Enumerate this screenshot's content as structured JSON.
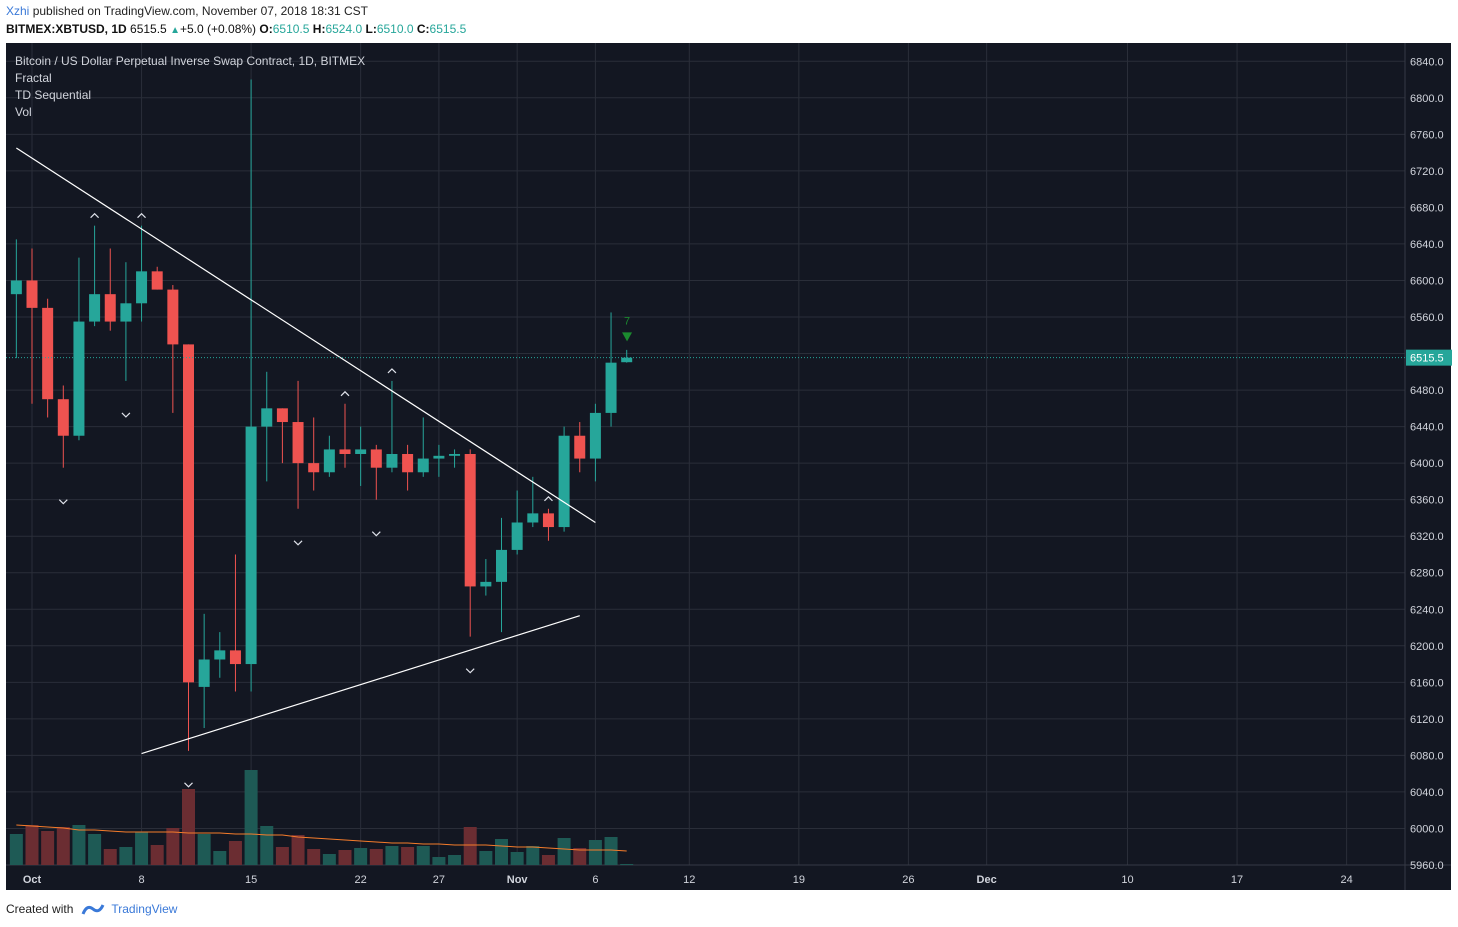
{
  "header": {
    "author": "Xzhi",
    "published_text": "published on TradingView.com, November 07, 2018 18:31 CST",
    "symbol": "BITMEX:XBTUSD, 1D",
    "last": "6515.5",
    "change": "+5.0 (+0.08%)",
    "o_label": "O:",
    "o_value": "6510.5",
    "h_label": "H:",
    "h_value": "6524.0",
    "l_label": "L:",
    "l_value": "6510.0",
    "c_label": "C:",
    "c_value": "6515.5"
  },
  "legend": {
    "title": "Bitcoin / US Dollar Perpetual Inverse Swap Contract, 1D, BITMEX",
    "indicators": [
      "Fractal",
      "TD Sequential",
      "Vol"
    ]
  },
  "footer": {
    "created_with": "Created with",
    "brand": "TradingView"
  },
  "colors": {
    "background": "#131722",
    "grid": "#2a2e39",
    "up": "#26a69a",
    "down": "#ef5350",
    "vol_up": "#1e5a55",
    "vol_down": "#6b2d32",
    "vol_ma": "#f57c2b",
    "price_line": "#26a69a",
    "trendline": "#ffffff"
  },
  "chart_data": {
    "type": "candlestick",
    "title": "Bitcoin / US Dollar Perpetual Inverse Swap Contract, 1D, BITMEX",
    "ylim": [
      5960,
      6860
    ],
    "y_ticks": [
      "5960.0",
      "6000.0",
      "6040.0",
      "6080.0",
      "6120.0",
      "6160.0",
      "6200.0",
      "6240.0",
      "6280.0",
      "6320.0",
      "6360.0",
      "6400.0",
      "6440.0",
      "6480.0",
      "6520.0",
      "6560.0",
      "6600.0",
      "6640.0",
      "6680.0",
      "6720.0",
      "6760.0",
      "6800.0",
      "6840.0"
    ],
    "x_ticks": [
      {
        "label": "Oct",
        "date": "2018-10-01"
      },
      {
        "label": "8",
        "date": "2018-10-08"
      },
      {
        "label": "15",
        "date": "2018-10-15"
      },
      {
        "label": "22",
        "date": "2018-10-22"
      },
      {
        "label": "27",
        "date": "2018-10-27"
      },
      {
        "label": "Nov",
        "date": "2018-11-01"
      },
      {
        "label": "6",
        "date": "2018-11-06"
      },
      {
        "label": "12",
        "date": "2018-11-12"
      },
      {
        "label": "19",
        "date": "2018-11-19"
      },
      {
        "label": "26",
        "date": "2018-11-26"
      },
      {
        "label": "Dec",
        "date": "2018-12-01"
      },
      {
        "label": "10",
        "date": "2018-12-10"
      },
      {
        "label": "17",
        "date": "2018-12-17"
      },
      {
        "label": "24",
        "date": "2018-12-24"
      }
    ],
    "last_price": "6515.5",
    "candles": [
      {
        "date": "2018-09-30",
        "o": 6585,
        "h": 6645,
        "l": 6515,
        "c": 6600,
        "v": 31
      },
      {
        "date": "2018-10-01",
        "o": 6600,
        "h": 6635,
        "l": 6465,
        "c": 6570,
        "v": 40
      },
      {
        "date": "2018-10-02",
        "o": 6570,
        "h": 6580,
        "l": 6450,
        "c": 6470,
        "v": 34
      },
      {
        "date": "2018-10-03",
        "o": 6470,
        "h": 6485,
        "l": 6395,
        "c": 6430,
        "v": 38
      },
      {
        "date": "2018-10-04",
        "o": 6430,
        "h": 6625,
        "l": 6425,
        "c": 6555,
        "v": 40
      },
      {
        "date": "2018-10-05",
        "o": 6555,
        "h": 6660,
        "l": 6550,
        "c": 6585,
        "v": 31
      },
      {
        "date": "2018-10-06",
        "o": 6585,
        "h": 6635,
        "l": 6545,
        "c": 6555,
        "v": 16
      },
      {
        "date": "2018-10-07",
        "o": 6555,
        "h": 6620,
        "l": 6490,
        "c": 6575,
        "v": 18
      },
      {
        "date": "2018-10-08",
        "o": 6575,
        "h": 6660,
        "l": 6555,
        "c": 6610,
        "v": 33
      },
      {
        "date": "2018-10-09",
        "o": 6610,
        "h": 6615,
        "l": 6590,
        "c": 6590,
        "v": 20
      },
      {
        "date": "2018-10-10",
        "o": 6590,
        "h": 6595,
        "l": 6455,
        "c": 6530,
        "v": 37
      },
      {
        "date": "2018-10-11",
        "o": 6530,
        "h": 6530,
        "l": 6085,
        "c": 6160,
        "v": 76
      },
      {
        "date": "2018-10-12",
        "o": 6155,
        "h": 6235,
        "l": 6110,
        "c": 6185,
        "v": 31
      },
      {
        "date": "2018-10-13",
        "o": 6185,
        "h": 6215,
        "l": 6165,
        "c": 6195,
        "v": 14
      },
      {
        "date": "2018-10-14",
        "o": 6195,
        "h": 6300,
        "l": 6150,
        "c": 6180,
        "v": 24
      },
      {
        "date": "2018-10-15",
        "o": 6180,
        "h": 6820,
        "l": 6150,
        "c": 6440,
        "v": 95
      },
      {
        "date": "2018-10-16",
        "o": 6440,
        "h": 6500,
        "l": 6380,
        "c": 6460,
        "v": 39
      },
      {
        "date": "2018-10-17",
        "o": 6460,
        "h": 6460,
        "l": 6400,
        "c": 6445,
        "v": 18
      },
      {
        "date": "2018-10-18",
        "o": 6445,
        "h": 6490,
        "l": 6350,
        "c": 6400,
        "v": 30
      },
      {
        "date": "2018-10-19",
        "o": 6400,
        "h": 6450,
        "l": 6370,
        "c": 6390,
        "v": 16
      },
      {
        "date": "2018-10-20",
        "o": 6390,
        "h": 6430,
        "l": 6385,
        "c": 6415,
        "v": 11
      },
      {
        "date": "2018-10-21",
        "o": 6415,
        "h": 6465,
        "l": 6395,
        "c": 6410,
        "v": 15
      },
      {
        "date": "2018-10-22",
        "o": 6410,
        "h": 6440,
        "l": 6375,
        "c": 6415,
        "v": 17
      },
      {
        "date": "2018-10-23",
        "o": 6415,
        "h": 6420,
        "l": 6360,
        "c": 6395,
        "v": 16
      },
      {
        "date": "2018-10-24",
        "o": 6395,
        "h": 6490,
        "l": 6390,
        "c": 6410,
        "v": 19
      },
      {
        "date": "2018-10-25",
        "o": 6410,
        "h": 6420,
        "l": 6370,
        "c": 6390,
        "v": 18
      },
      {
        "date": "2018-10-26",
        "o": 6390,
        "h": 6450,
        "l": 6385,
        "c": 6405,
        "v": 19
      },
      {
        "date": "2018-10-27",
        "o": 6405,
        "h": 6420,
        "l": 6385,
        "c": 6408,
        "v": 8
      },
      {
        "date": "2018-10-28",
        "o": 6408,
        "h": 6415,
        "l": 6395,
        "c": 6410,
        "v": 10
      },
      {
        "date": "2018-10-29",
        "o": 6410,
        "h": 6415,
        "l": 6210,
        "c": 6265,
        "v": 38
      },
      {
        "date": "2018-10-30",
        "o": 6265,
        "h": 6295,
        "l": 6255,
        "c": 6270,
        "v": 14
      },
      {
        "date": "2018-10-31",
        "o": 6270,
        "h": 6340,
        "l": 6215,
        "c": 6305,
        "v": 26
      },
      {
        "date": "2018-11-01",
        "o": 6305,
        "h": 6370,
        "l": 6300,
        "c": 6335,
        "v": 13
      },
      {
        "date": "2018-11-02",
        "o": 6335,
        "h": 6385,
        "l": 6330,
        "c": 6345,
        "v": 19
      },
      {
        "date": "2018-11-03",
        "o": 6345,
        "h": 6350,
        "l": 6315,
        "c": 6330,
        "v": 10
      },
      {
        "date": "2018-11-04",
        "o": 6330,
        "h": 6440,
        "l": 6325,
        "c": 6430,
        "v": 27
      },
      {
        "date": "2018-11-05",
        "o": 6430,
        "h": 6445,
        "l": 6390,
        "c": 6405,
        "v": 17
      },
      {
        "date": "2018-11-06",
        "o": 6405,
        "h": 6465,
        "l": 6380,
        "c": 6455,
        "v": 25
      },
      {
        "date": "2018-11-07",
        "o": 6455,
        "h": 6565,
        "l": 6440,
        "c": 6510,
        "v": 28
      },
      {
        "date": "2018-11-08",
        "o": 6510.5,
        "h": 6524,
        "l": 6510,
        "c": 6515.5,
        "v": 1
      }
    ],
    "volume_ma": [
      40,
      39,
      38,
      37,
      35,
      35,
      34,
      33,
      33,
      33,
      33,
      32,
      32,
      32,
      31,
      31,
      30,
      30,
      28,
      27,
      26,
      25,
      24,
      23,
      22,
      22,
      21,
      21,
      20,
      20,
      20,
      19,
      18,
      18,
      17,
      16,
      15,
      15,
      15,
      14
    ],
    "fractals": [
      {
        "date": "2018-10-03",
        "dir": "down"
      },
      {
        "date": "2018-10-05",
        "dir": "up"
      },
      {
        "date": "2018-10-07",
        "dir": "down"
      },
      {
        "date": "2018-10-08",
        "dir": "up"
      },
      {
        "date": "2018-10-11",
        "dir": "down"
      },
      {
        "date": "2018-10-18",
        "dir": "down"
      },
      {
        "date": "2018-10-21",
        "dir": "up"
      },
      {
        "date": "2018-10-23",
        "dir": "down"
      },
      {
        "date": "2018-10-24",
        "dir": "up"
      },
      {
        "date": "2018-10-29",
        "dir": "down"
      },
      {
        "date": "2018-11-03",
        "dir": "up"
      }
    ],
    "td_sequential": [
      {
        "date": "2018-11-07",
        "label": "7"
      }
    ],
    "trendlines": [
      {
        "from": {
          "date": "2018-09-30",
          "price": 6745
        },
        "to": {
          "date": "2018-11-06",
          "price": 6335
        }
      },
      {
        "from": {
          "date": "2018-10-08",
          "price": 6082
        },
        "to": {
          "date": "2018-11-05",
          "price": 6233
        }
      }
    ]
  }
}
